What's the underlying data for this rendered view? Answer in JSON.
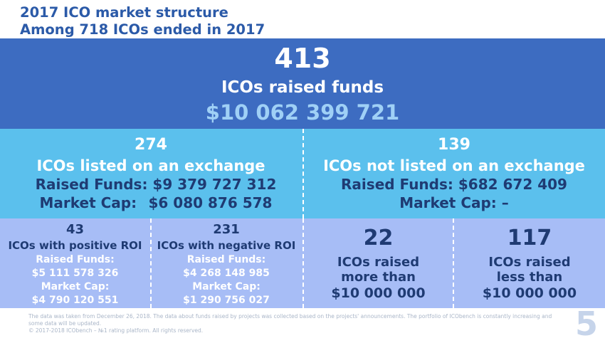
{
  "header": {
    "title_line1": "2017 ICO market structure",
    "title_line2": "Among 718 ICOs ended in 2017"
  },
  "top": {
    "count": "413",
    "label": "ICOs raised funds",
    "amount": "$10 062 399 721"
  },
  "middle": {
    "left": {
      "count": "274",
      "label": "ICOs listed on an exchange",
      "funds_label": "Raised Funds:",
      "funds_value": "$9 379 727 312",
      "cap_label": "Market Cap:",
      "cap_value": "$6 080 876 578"
    },
    "right": {
      "count": "139",
      "label": "ICOs not listed on an exchange",
      "funds_label": "Raised Funds:",
      "funds_value": "$682 672 409",
      "cap_label": "Market Cap:",
      "cap_value": "–"
    }
  },
  "bottom": {
    "positive": {
      "count": "43",
      "label": "ICOs with positive ROI",
      "funds_label": "Raised Funds:",
      "funds_value": "$5 111 578 326",
      "cap_label": "Market Cap:",
      "cap_value": "$4 790 120 551"
    },
    "negative": {
      "count": "231",
      "label": "ICOs with negative ROI",
      "funds_label": "Raised Funds:",
      "funds_value": "$4 268 148 985",
      "cap_label": "Market Cap:",
      "cap_value": "$1 290 756 027"
    },
    "more": {
      "count": "22",
      "line1": "ICOs raised",
      "line2": "more than",
      "line3": "$10 000 000"
    },
    "less": {
      "count": "117",
      "line1": "ICOs raised",
      "line2": "less than",
      "line3": "$10 000 000"
    }
  },
  "footer": {
    "note": "The data was taken from December 26, 2018. The data about funds raised by projects was collected based on the projects' announcements. The portfolio of ICObench is constantly increasing and some data will be updated.",
    "copyright": "© 2017-2018 ICObench – №1 rating platform. All rights reserved."
  },
  "page_number": "5",
  "colors": {
    "header_text": "#2b5aa8",
    "top_bg": "#3d6cc1",
    "top_amount": "#9fd0f6",
    "middle_bg": "#5bc0ed",
    "bottom_bg": "#a7bdf6",
    "dark_text": "#1f3b73"
  }
}
